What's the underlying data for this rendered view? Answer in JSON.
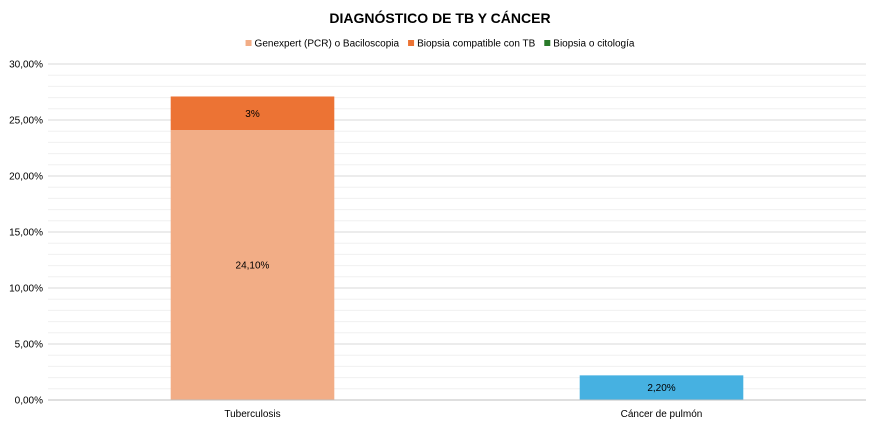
{
  "chart_data": {
    "type": "bar",
    "stacked": true,
    "title": "DIAGNÓSTICO DE TB Y CÁNCER",
    "categories": [
      "Tuberculosis",
      "Cáncer de pulmón"
    ],
    "ylim": [
      0,
      30
    ],
    "yticks": [
      "0,00%",
      "5,00%",
      "10,00%",
      "15,00%",
      "20,00%",
      "25,00%",
      "30,00%"
    ],
    "ytick_values": [
      0,
      5,
      10,
      15,
      20,
      25,
      30
    ],
    "grid": true,
    "legend_position": "top",
    "legend": [
      {
        "name": "Genexpert (PCR) o Baciloscopia",
        "color": "#f2ad86"
      },
      {
        "name": "Biopsia compatible con TB",
        "color": "#ec7334"
      },
      {
        "name": "Biopsia o citología",
        "color": "#2a7a2a"
      }
    ],
    "bars": [
      {
        "category": "Tuberculosis",
        "name": "Genexpert (PCR) o Baciloscopia",
        "value": 24.1,
        "label": "24,10%",
        "color": "#f2ad86",
        "base": 0
      },
      {
        "category": "Tuberculosis",
        "name": "Biopsia compatible con TB",
        "value": 3,
        "label": "3%",
        "color": "#ec7334",
        "base": 24.1
      },
      {
        "category": "Cáncer de pulmón",
        "name": "",
        "value": 2.2,
        "label": "2,20%",
        "color": "#46b1e1",
        "base": 0
      }
    ]
  }
}
